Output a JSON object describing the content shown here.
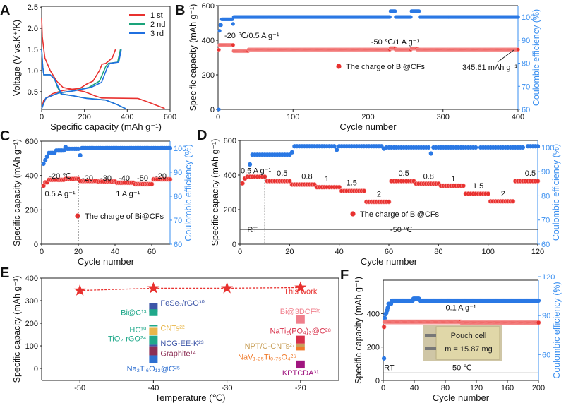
{
  "colors": {
    "red": "#e8312f",
    "green": "#1aa37a",
    "blue": "#1f6fe0",
    "ce_blue": "#2a78e4",
    "axis_blue": "#3a8ff0"
  },
  "chart_data": [
    {
      "panel": "A",
      "type": "line",
      "xlabel": "Specific capacity (mAh g⁻¹)",
      "ylabel": "Voltage (V vs.K⁺/K)",
      "xlim": [
        0,
        600
      ],
      "ylim": [
        0.08,
        2.52
      ],
      "xticks": [
        0,
        200,
        400,
        600
      ],
      "yticks": [
        0.5,
        1.0,
        1.5,
        2.0,
        2.5
      ],
      "legend": "top-right",
      "series": [
        {
          "name": "1 st",
          "color": "#e8312f",
          "segments": [
            {
              "x": [
                0,
                3,
                15,
                40,
                70,
                100,
                150,
                200,
                250,
                280,
                450,
                500,
                575
              ],
              "y": [
                2.25,
                1.8,
                1.3,
                1.0,
                0.75,
                0.6,
                0.55,
                0.5,
                0.4,
                0.35,
                0.34,
                0.25,
                0.1
              ]
            },
            {
              "x": [
                0,
                10,
                50,
                100,
                180,
                210,
                240,
                270,
                282,
                300,
                330,
                345
              ],
              "y": [
                0.1,
                0.3,
                0.45,
                0.53,
                0.58,
                0.68,
                0.75,
                1.0,
                1.15,
                1.17,
                1.3,
                1.5
              ]
            }
          ]
        },
        {
          "name": "2 nd",
          "color": "#1aa37a",
          "segments": [
            {
              "x": [
                0,
                5,
                10,
                40,
                60,
                75,
                90,
                150,
                200,
                300,
                350,
                390
              ],
              "y": [
                1.5,
                1.1,
                0.9,
                0.9,
                0.8,
                0.6,
                0.45,
                0.4,
                0.35,
                0.3,
                0.2,
                0.1
              ]
            },
            {
              "x": [
                0,
                20,
                80,
                150,
                220,
                270,
                300,
                312,
                355,
                368
              ],
              "y": [
                0.1,
                0.35,
                0.47,
                0.52,
                0.6,
                0.75,
                1.1,
                1.17,
                1.2,
                1.5
              ]
            }
          ]
        },
        {
          "name": "3 rd",
          "color": "#1f6fe0",
          "segments": [
            {
              "x": [
                0,
                5,
                10,
                40,
                60,
                78,
                95,
                150,
                210,
                300,
                350,
                392
              ],
              "y": [
                1.5,
                1.1,
                0.9,
                0.9,
                0.8,
                0.6,
                0.44,
                0.4,
                0.34,
                0.3,
                0.2,
                0.1
              ]
            },
            {
              "x": [
                0,
                20,
                80,
                150,
                230,
                280,
                305,
                318,
                360,
                372
              ],
              "y": [
                0.1,
                0.35,
                0.47,
                0.52,
                0.6,
                0.72,
                1.05,
                1.17,
                1.2,
                1.5
              ]
            }
          ]
        }
      ]
    },
    {
      "panel": "B",
      "type": "scatter",
      "xlabel": "Cycle number",
      "ylabel": "Specific capacity (mAh g⁻¹)",
      "y2label": "Coulombic efficiency (%)",
      "xlim": [
        0,
        400
      ],
      "ylim": [
        0,
        600
      ],
      "y2lim": [
        60,
        104.9
      ],
      "xticks": [
        0,
        100,
        200,
        300,
        400
      ],
      "yticks": [
        0,
        200,
        400,
        600
      ],
      "y2ticks": [
        60,
        70,
        80,
        90,
        100
      ],
      "capacity_segments": [
        [
          1,
          1,
          345
        ],
        [
          2,
          20,
          372
        ],
        [
          21,
          40,
          338
        ],
        [
          41,
          229,
          346
        ],
        [
          230,
          236,
          353
        ],
        [
          237,
          257,
          346
        ],
        [
          258,
          265,
          352
        ],
        [
          266,
          400,
          346
        ]
      ],
      "ce_segments": [
        [
          1,
          1,
          60
        ],
        [
          2,
          2,
          94
        ],
        [
          3,
          4,
          96.5
        ],
        [
          5,
          19,
          99
        ],
        [
          20,
          20,
          97
        ],
        [
          21,
          229,
          100
        ],
        [
          230,
          236,
          102.5
        ],
        [
          237,
          257,
          100
        ],
        [
          258,
          268,
          102.5
        ],
        [
          269,
          400,
          100
        ]
      ],
      "annotations": [
        "-20 ℃/0.5 A g⁻¹",
        "-50 ℃/1 A g⁻¹",
        "345.61 mAh g⁻¹"
      ],
      "legend": "The charge of Bi@CFs"
    },
    {
      "panel": "C",
      "type": "scatter",
      "xlabel": "Cycle number",
      "ylabel": "Specific capacity (mAh g⁻¹)",
      "y2label": "Coulombic efficiency (%)",
      "xlim": [
        0,
        70
      ],
      "ylim": [
        0,
        600
      ],
      "y2lim": [
        60,
        102.9
      ],
      "xticks": [
        0,
        20,
        40,
        60
      ],
      "yticks": [
        0,
        200,
        400,
        600
      ],
      "y2ticks": [
        60,
        70,
        80,
        90,
        100
      ],
      "capacity_segments": [
        [
          1,
          1,
          340
        ],
        [
          2,
          3,
          360
        ],
        [
          4,
          12,
          375
        ],
        [
          13,
          20,
          380
        ],
        [
          21,
          30,
          368
        ],
        [
          31,
          40,
          365
        ],
        [
          41,
          50,
          358
        ],
        [
          51,
          60,
          350
        ],
        [
          61,
          70,
          378
        ]
      ],
      "ce_segments": [
        [
          1,
          1,
          93.5
        ],
        [
          2,
          2,
          95
        ],
        [
          3,
          3,
          96.5
        ],
        [
          4,
          7,
          98
        ],
        [
          8,
          12,
          99
        ],
        [
          13,
          13,
          100.5
        ],
        [
          14,
          20,
          99.7
        ],
        [
          21,
          21,
          97
        ],
        [
          22,
          70,
          100
        ]
      ],
      "annotations": [
        "-20 ℃",
        "-20",
        "-30",
        "-40",
        "-50",
        "-20",
        "0.5 A g⁻¹",
        "1 A g⁻¹"
      ],
      "legend": "The charge of Bi@CFs"
    },
    {
      "panel": "D",
      "type": "scatter",
      "xlabel": "Cycle number",
      "ylabel": "Specific capacity (mAh g⁻¹)",
      "y2label": "Coulombic efficiency (%)",
      "xlim": [
        0,
        120
      ],
      "ylim": [
        0,
        600
      ],
      "y2lim": [
        60,
        102.9
      ],
      "xticks": [
        0,
        20,
        40,
        60,
        80,
        100,
        120
      ],
      "yticks": [
        0,
        200,
        400,
        600
      ],
      "y2ticks": [
        60,
        70,
        80,
        90,
        100
      ],
      "capacity_segments": [
        [
          1,
          1,
          352
        ],
        [
          2,
          2,
          380
        ],
        [
          3,
          10,
          390
        ],
        [
          11,
          20,
          365
        ],
        [
          21,
          30,
          345
        ],
        [
          31,
          40,
          330
        ],
        [
          41,
          50,
          308
        ],
        [
          51,
          60,
          245
        ],
        [
          61,
          70,
          365
        ],
        [
          71,
          80,
          350
        ],
        [
          81,
          90,
          338
        ],
        [
          91,
          100,
          292
        ],
        [
          101,
          110,
          248
        ],
        [
          111,
          120,
          365
        ]
      ],
      "ce_segments": [
        [
          4,
          4,
          93
        ],
        [
          5,
          20,
          97
        ],
        [
          21,
          21,
          98
        ],
        [
          22,
          38,
          100.5
        ],
        [
          39,
          39,
          99
        ],
        [
          40,
          57,
          100.5
        ],
        [
          58,
          58,
          99.5
        ],
        [
          59,
          76,
          100
        ],
        [
          77,
          77,
          97.5
        ],
        [
          78,
          95,
          100
        ],
        [
          97,
          114,
          100
        ],
        [
          116,
          120,
          100.5
        ]
      ],
      "rate_labels": [
        "0.5 A g⁻¹",
        "0.5",
        "0.8",
        "1",
        "1.5",
        "2",
        "0.5",
        "0.8",
        "1",
        "1.5",
        "2",
        "0.5"
      ],
      "region_labels": [
        "RT",
        "-50 ℃"
      ],
      "legend": "The charge of Bi@CFs"
    },
    {
      "panel": "E",
      "type": "bar",
      "xlabel": "Temperature (℃)",
      "ylabel": "Specific capacity (mAh g⁻¹)",
      "xlim": [
        -55.2,
        -14.8
      ],
      "ylim": [
        -53,
        400
      ],
      "xticks": [
        -50,
        -40,
        -30,
        -20
      ],
      "yticks": [
        0,
        100,
        200,
        300,
        400
      ],
      "this_work": {
        "label": "This work",
        "x": [
          -50,
          -40,
          -30,
          -20
        ],
        "y": [
          345,
          355,
          355,
          358
        ]
      },
      "ranges": [
        {
          "name": "FeSe₂/rGO³⁰",
          "temp": -40,
          "low": 250,
          "high": 290,
          "color": "#3d56a8"
        },
        {
          "name": "Bi@C¹³",
          "temp": -40,
          "low": 232,
          "high": 262,
          "color": "#1fa88a"
        },
        {
          "name": "HC¹⁰",
          "temp": -40,
          "low": 186,
          "high": 193,
          "color": "#1fa88a"
        },
        {
          "name": "CNTs²²",
          "temp": -40,
          "low": 148,
          "high": 180,
          "color": "#e8b64a"
        },
        {
          "name": "TiO₂-rGO²⁴",
          "temp": -40,
          "low": 105,
          "high": 145,
          "color": "#1fa88a"
        },
        {
          "name": "NCG-EE-K²³",
          "temp": -40,
          "low": 98,
          "high": 105,
          "color": "#3d56a8"
        },
        {
          "name": "Graphite¹⁴",
          "temp": -40,
          "low": 58,
          "high": 98,
          "color": "#8c2e55"
        },
        {
          "name": "Na₂Ti₆O₁₃@C²⁵",
          "temp": -40,
          "low": 25,
          "high": 58,
          "color": "#2e6fd0"
        },
        {
          "name": "Bi@3DCF²⁹",
          "temp": -20,
          "low": 198,
          "high": 235,
          "color": "#f07f8c"
        },
        {
          "name": "NaTi₂(PO₄)₃@C²⁸",
          "temp": -20,
          "low": 110,
          "high": 145,
          "color": "#d8304a"
        },
        {
          "name": "NPT/C-CNTs²⁷",
          "temp": -20,
          "low": 95,
          "high": 110,
          "color": "#c9a05a"
        },
        {
          "name": "NaV₁.₂₅Ti₀.₇₅O₄²⁶",
          "temp": -20,
          "low": 80,
          "high": 95,
          "color": "#f07a2a"
        },
        {
          "name": "KPTCDA³¹",
          "temp": -20,
          "low": 0,
          "high": 35,
          "color": "#a0157f"
        }
      ]
    },
    {
      "panel": "F",
      "type": "scatter",
      "xlabel": "Cycle number",
      "ylabel": "Specific capacity (mAh g⁻¹)",
      "y2label": "Coulombic efficiency (%)",
      "xlim": [
        0,
        200
      ],
      "ylim": [
        0,
        600
      ],
      "y2lim": [
        40,
        117.3
      ],
      "xticks": [
        0,
        40,
        80,
        120,
        160,
        200
      ],
      "yticks": [
        0,
        200,
        400
      ],
      "y2ticks": [
        60,
        90,
        120
      ],
      "capacity_segments": [
        [
          1,
          1,
          320
        ],
        [
          2,
          100,
          350
        ],
        [
          101,
          200,
          346
        ]
      ],
      "ce_segments": [
        [
          1,
          1,
          57
        ],
        [
          2,
          2,
          88
        ],
        [
          3,
          3,
          91
        ],
        [
          4,
          4,
          92
        ],
        [
          5,
          5,
          94
        ],
        [
          6,
          6,
          96
        ],
        [
          7,
          10,
          99
        ],
        [
          11,
          38,
          101.5
        ],
        [
          39,
          46,
          103
        ],
        [
          47,
          200,
          101.5
        ]
      ],
      "annotations": [
        "0.1 A g⁻¹"
      ],
      "region_labels": [
        "RT",
        "-50 ℃"
      ],
      "inset": {
        "title": "Pouch cell",
        "mass": "m = 15.87 mg"
      }
    }
  ]
}
